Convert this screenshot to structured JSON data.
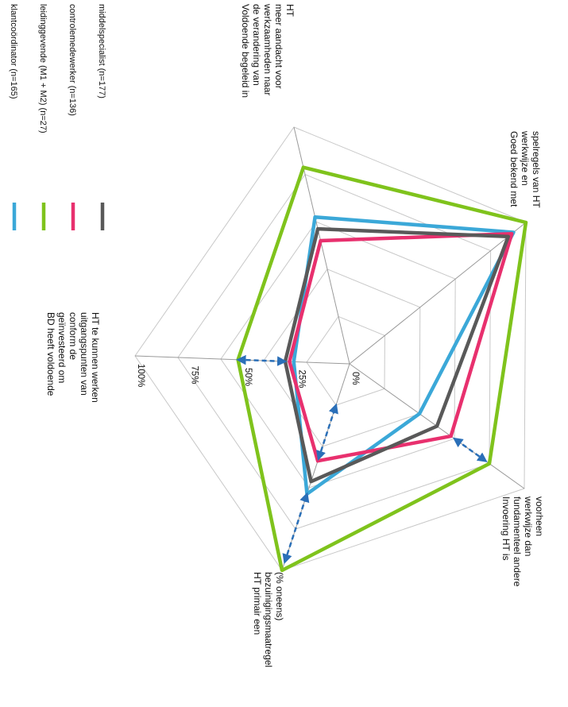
{
  "chart_data": {
    "type": "radar",
    "axes": [
      {
        "id": "top",
        "lines": [
          "Voldoende begeleid in",
          "de verandering van",
          "werkzaamheden naar",
          "meer aandacht voor",
          "HT"
        ]
      },
      {
        "id": "upper_right",
        "lines": [
          "Goed bekend met",
          "werkwijze en",
          "spelregels van HT"
        ]
      },
      {
        "id": "lower_right",
        "lines": [
          "Invoering HT is",
          "fundamenteel andere",
          "werkwijze dan",
          "voorheen"
        ]
      },
      {
        "id": "bottom",
        "lines": [
          "HT primair een",
          "bezuinigingsmaatregel",
          "(% oneens)"
        ]
      },
      {
        "id": "left",
        "lines": [
          "BD heeft voldoende",
          "geïnvesteerd om",
          "conform de",
          "uitgangspunten van",
          "HT te kunnen werken"
        ]
      }
    ],
    "tick_labels": [
      "0%",
      "25%",
      "50%",
      "75%",
      "100%"
    ],
    "rlim": [
      0,
      100
    ],
    "series": [
      {
        "name": "klantcoördinator (n=165)",
        "color": "#3ba8d8",
        "values": [
          62,
          93,
          40,
          63,
          26
        ]
      },
      {
        "name": "leidinggevende (M1 + M2) (n=27)",
        "color": "#7fc31c",
        "values": [
          83,
          100,
          80,
          100,
          52
        ]
      },
      {
        "name": "controlemedewerker (n=136)",
        "color": "#e8306e",
        "values": [
          52,
          92,
          58,
          47,
          28
        ]
      },
      {
        "name": "middelspecialist (n=177)",
        "color": "#595959",
        "values": [
          57,
          90,
          50,
          57,
          30
        ]
      }
    ],
    "legend_position": "top",
    "annotations": "dashed blue double-headed arrows marking differences between groups"
  }
}
